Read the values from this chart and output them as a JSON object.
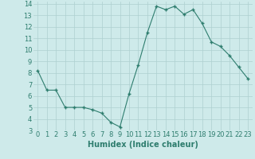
{
  "x": [
    0,
    1,
    2,
    3,
    4,
    5,
    6,
    7,
    8,
    9,
    10,
    11,
    12,
    13,
    14,
    15,
    16,
    17,
    18,
    19,
    20,
    21,
    22,
    23
  ],
  "y": [
    8.2,
    6.5,
    6.5,
    5.0,
    5.0,
    5.0,
    4.8,
    4.5,
    3.7,
    3.3,
    6.2,
    8.7,
    11.5,
    13.8,
    13.5,
    13.8,
    13.1,
    13.5,
    12.3,
    10.7,
    10.3,
    9.5,
    8.5,
    7.5
  ],
  "line_color": "#2e7d6e",
  "marker": "+",
  "marker_size": 3,
  "marker_lw": 1.0,
  "bg_color": "#ceeaea",
  "grid_color": "#aed0d0",
  "xlabel": "Humidex (Indice chaleur)",
  "xlim": [
    -0.5,
    23.5
  ],
  "ylim": [
    3,
    14.2
  ],
  "yticks": [
    3,
    4,
    5,
    6,
    7,
    8,
    9,
    10,
    11,
    12,
    13,
    14
  ],
  "xticks": [
    0,
    1,
    2,
    3,
    4,
    5,
    6,
    7,
    8,
    9,
    10,
    11,
    12,
    13,
    14,
    15,
    16,
    17,
    18,
    19,
    20,
    21,
    22,
    23
  ],
  "xlabel_fontsize": 7,
  "tick_fontsize": 6,
  "line_width": 0.8,
  "tick_color": "#2e7d6e"
}
